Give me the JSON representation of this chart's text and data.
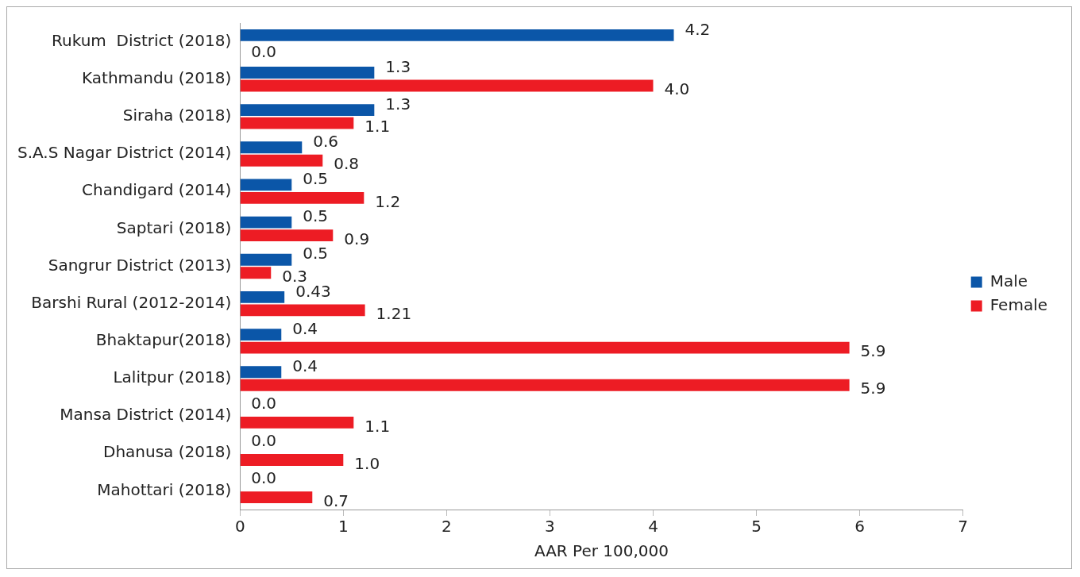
{
  "chart_data": {
    "type": "bar",
    "orientation": "horizontal",
    "xlabel": "AAR Per 100,000",
    "categories": [
      "Rukum  District (2018)",
      "Kathmandu (2018)",
      "Siraha (2018)",
      "S.A.S Nagar District (2014)",
      "Chandigard (2014)",
      "Saptari (2018)",
      "Sangrur District (2013)",
      "Barshi Rural (2012-2014)",
      "Bhaktapur(2018)",
      "Lalitpur (2018)",
      "Mansa District (2014)",
      "Dhanusa (2018)",
      "Mahottari (2018)"
    ],
    "series": [
      {
        "name": "Male",
        "color": "#0b56a8",
        "values": [
          4.2,
          1.3,
          1.3,
          0.6,
          0.5,
          0.5,
          0.5,
          0.43,
          0.4,
          0.4,
          0,
          0,
          0
        ],
        "value_labels": [
          "4.2",
          "1.3",
          "1.3",
          "0.6",
          "0.5",
          "0.5",
          "0.5",
          "0.43",
          "0.4",
          "0.4",
          "0.0",
          "0.0",
          "0.0"
        ]
      },
      {
        "name": "Female",
        "color": "#ed1c24",
        "values": [
          0,
          4.0,
          1.1,
          0.8,
          1.2,
          0.9,
          0.3,
          1.21,
          5.9,
          5.9,
          1.1,
          1.0,
          0.7
        ],
        "value_labels": [
          "0.0",
          "4.0",
          "1.1",
          "0.8",
          "1.2",
          "0.9",
          "0.3",
          "1.21",
          "5.9",
          "5.9",
          "1.1",
          "1.0",
          "0.7"
        ]
      }
    ],
    "xlim": [
      0,
      7
    ],
    "xticks": [
      0,
      1,
      2,
      3,
      4,
      5,
      6,
      7
    ],
    "grid": false,
    "legend": "right"
  }
}
